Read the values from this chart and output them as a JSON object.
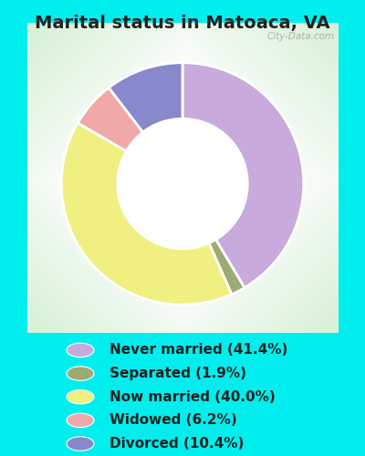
{
  "title": "Marital status in Matoaca, VA",
  "wedge_values": [
    41.4,
    1.9,
    40.0,
    6.2,
    10.4
  ],
  "wedge_colors": [
    "#C8AADC",
    "#9EAA74",
    "#F0EF82",
    "#F0A8A8",
    "#8888CC"
  ],
  "background_outer": "#00EEEE",
  "chart_bg_color": "#D8EFD8",
  "title_fontsize": 14,
  "legend_fontsize": 11,
  "watermark": "City-Data.com",
  "legend_items": [
    {
      "label": "Never married (41.4%)",
      "color": "#C8AADC"
    },
    {
      "label": "Separated (1.9%)",
      "color": "#9EAA74"
    },
    {
      "label": "Now married (40.0%)",
      "color": "#F0EF82"
    },
    {
      "label": "Widowed (6.2%)",
      "color": "#F0A8A8"
    },
    {
      "label": "Divorced (10.4%)",
      "color": "#8888CC"
    }
  ]
}
